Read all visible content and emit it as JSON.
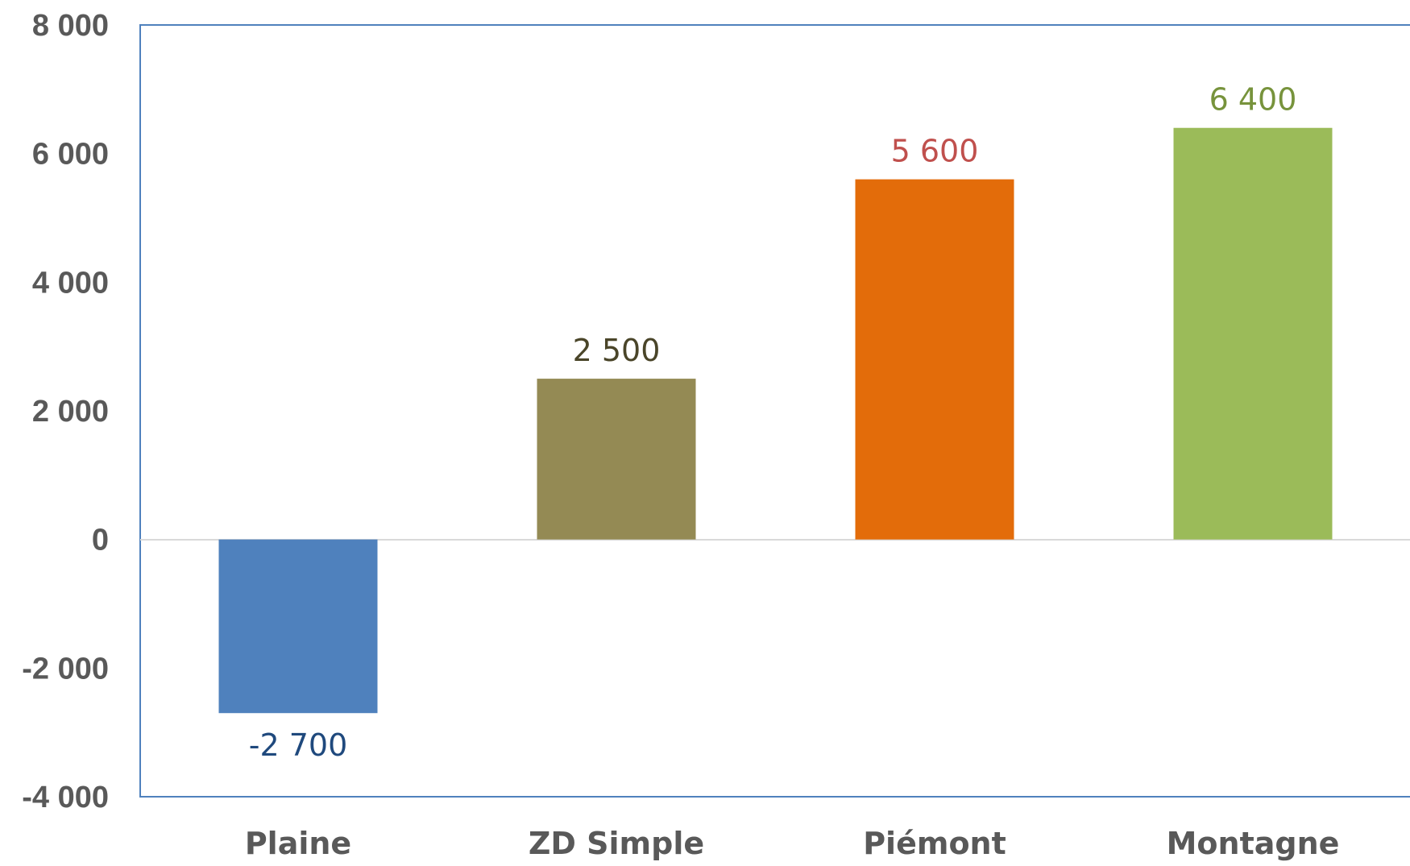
{
  "chart_data": {
    "type": "bar",
    "title": "",
    "xlabel": "",
    "ylabel": "",
    "categories": [
      "Plaine",
      "ZD Simple",
      "Piémont",
      "Montagne"
    ],
    "values": [
      -2700,
      2500,
      5600,
      6400
    ],
    "value_labels": [
      "-2 700",
      "2 500",
      "5 600",
      "6 400"
    ],
    "bar_colors": [
      "#4f81bd",
      "#948a54",
      "#e36c0a",
      "#9bbb59"
    ],
    "label_colors": [
      "#1f497d",
      "#4a4529",
      "#c0504d",
      "#77933c"
    ],
    "ylim": [
      -4000,
      8000
    ],
    "yticks": [
      8000,
      6000,
      4000,
      2000,
      0,
      -2000,
      -4000
    ],
    "ytick_labels": [
      "8 000",
      "6 000",
      "4 000",
      "2 000",
      "0",
      "-2 000",
      "-4 000"
    ],
    "grid": false,
    "legend": "none",
    "zero_line_color": "#d9d9d9",
    "frame_color": "#4f81bd"
  }
}
